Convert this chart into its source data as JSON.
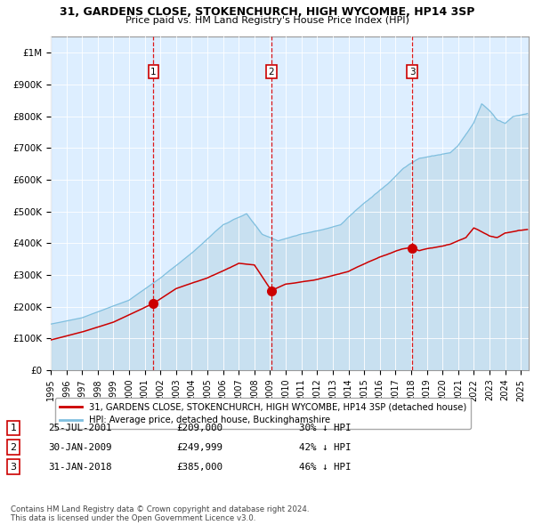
{
  "title": "31, GARDENS CLOSE, STOKENCHURCH, HIGH WYCOMBE, HP14 3SP",
  "subtitle": "Price paid vs. HM Land Registry's House Price Index (HPI)",
  "hpi_label": "HPI: Average price, detached house, Buckinghamshire",
  "property_label": "31, GARDENS CLOSE, STOKENCHURCH, HIGH WYCOMBE, HP14 3SP (detached house)",
  "hpi_color": "#7fbfdf",
  "hpi_fill_color": "#c8e0f0",
  "property_color": "#cc0000",
  "plot_bg_color": "#ddeeff",
  "ylim": [
    0,
    1050000
  ],
  "yticks": [
    0,
    100000,
    200000,
    300000,
    400000,
    500000,
    600000,
    700000,
    800000,
    900000,
    1000000
  ],
  "ytick_labels": [
    "£0",
    "£100K",
    "£200K",
    "£300K",
    "£400K",
    "£500K",
    "£600K",
    "£700K",
    "£800K",
    "£900K",
    "£1M"
  ],
  "sale_times": [
    2001.56,
    2009.08,
    2018.08
  ],
  "sale_prices": [
    209000,
    249999,
    385000
  ],
  "sale_display": [
    {
      "num": "1",
      "date": "25-JUL-2001",
      "price": "£209,000",
      "pct": "30% ↓ HPI"
    },
    {
      "num": "2",
      "date": "30-JAN-2009",
      "price": "£249,999",
      "pct": "42% ↓ HPI"
    },
    {
      "num": "3",
      "date": "31-JAN-2018",
      "price": "£385,000",
      "pct": "46% ↓ HPI"
    }
  ],
  "footer": "Contains HM Land Registry data © Crown copyright and database right 2024.\nThis data is licensed under the Open Government Licence v3.0."
}
